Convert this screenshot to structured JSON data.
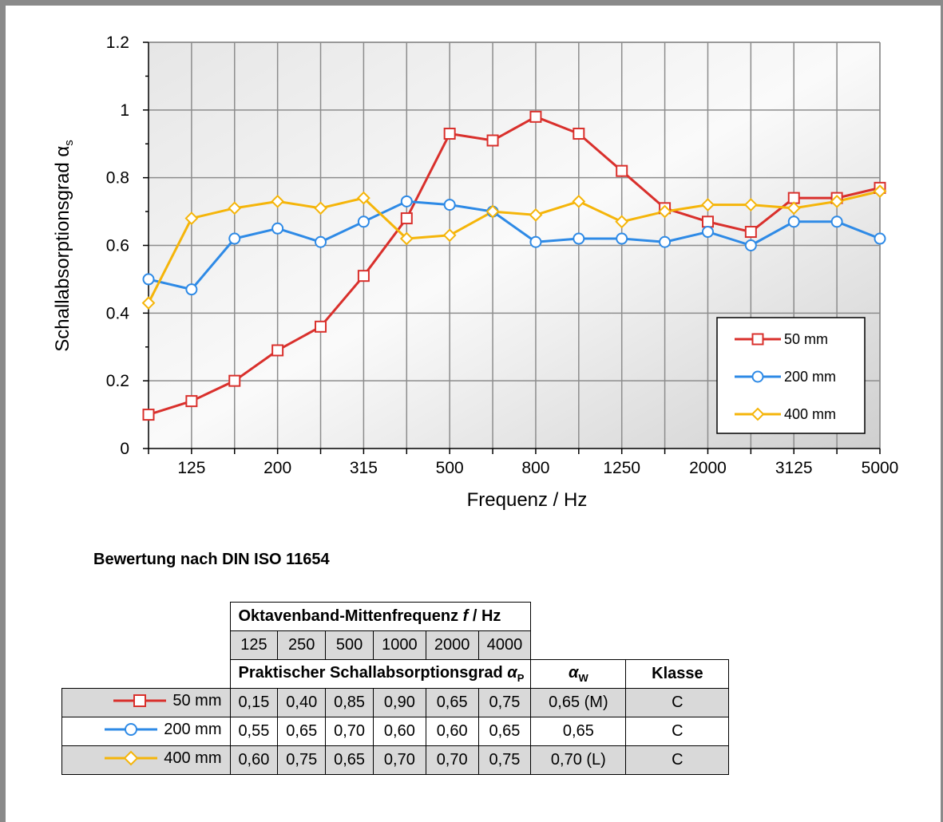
{
  "chart_data": {
    "type": "line",
    "ylabel": "Schallabsorptionsgrad α",
    "ylabel_sub": "s",
    "xlabel": "Frequenz / Hz",
    "ylim": [
      0,
      1.2
    ],
    "y_ticks": [
      "0",
      "0.2",
      "0.4",
      "0.6",
      "0.8",
      "1",
      "1.2"
    ],
    "x": [
      100,
      125,
      160,
      200,
      250,
      315,
      400,
      500,
      630,
      800,
      1000,
      1250,
      1600,
      2000,
      2500,
      3125,
      4000,
      5000
    ],
    "x_tick_labels": [
      "",
      "125",
      "",
      "200",
      "",
      "315",
      "",
      "500",
      "",
      "800",
      "",
      "1250",
      "",
      "2000",
      "",
      "3125",
      "",
      "5000"
    ],
    "grid": true,
    "legend_position": "bottom-right",
    "series": [
      {
        "name": "50 mm",
        "color": "#d9302c",
        "marker": "square",
        "values": [
          0.1,
          0.14,
          0.2,
          0.29,
          0.36,
          0.51,
          0.68,
          0.93,
          0.91,
          0.98,
          0.93,
          0.82,
          0.71,
          0.67,
          0.64,
          0.74,
          0.74,
          0.77
        ]
      },
      {
        "name": "200 mm",
        "color": "#2e8ae6",
        "marker": "circle",
        "values": [
          0.5,
          0.47,
          0.62,
          0.65,
          0.61,
          0.67,
          0.73,
          0.72,
          0.7,
          0.61,
          0.62,
          0.62,
          0.61,
          0.64,
          0.6,
          0.67,
          0.67,
          0.62
        ]
      },
      {
        "name": "400 mm",
        "color": "#f5b50a",
        "marker": "diamond",
        "values": [
          0.43,
          0.68,
          0.71,
          0.73,
          0.71,
          0.74,
          0.62,
          0.63,
          0.7,
          0.69,
          0.73,
          0.67,
          0.7,
          0.72,
          0.72,
          0.71,
          0.73,
          0.76
        ]
      }
    ]
  },
  "rating": {
    "title": "Bewertung nach DIN ISO 11654",
    "freq_header": "Oktavenband-Mittenfrequenz",
    "freq_header_symbol": "f",
    "freq_header_unit": " / Hz",
    "freqs": [
      "125",
      "250",
      "500",
      "1000",
      "2000",
      "4000"
    ],
    "practical_header": "Praktischer Schallabsorptionsgrad",
    "practical_symbol": "α",
    "practical_sub": "P",
    "aw_symbol": "α",
    "aw_sub": "W",
    "class_header": "Klasse",
    "rows": [
      {
        "name": "50 mm",
        "color": "#d9302c",
        "marker": "square",
        "values": [
          "0,15",
          "0,40",
          "0,85",
          "0,90",
          "0,65",
          "0,75"
        ],
        "aw": "0,65 (M)",
        "klasse": "C"
      },
      {
        "name": "200 mm",
        "color": "#2e8ae6",
        "marker": "circle",
        "values": [
          "0,55",
          "0,65",
          "0,70",
          "0,60",
          "0,60",
          "0,65"
        ],
        "aw": "0,65",
        "klasse": "C"
      },
      {
        "name": "400 mm",
        "color": "#f5b50a",
        "marker": "diamond",
        "values": [
          "0,60",
          "0,75",
          "0,65",
          "0,70",
          "0,70",
          "0,75"
        ],
        "aw": "0,70 (L)",
        "klasse": "C"
      }
    ]
  }
}
